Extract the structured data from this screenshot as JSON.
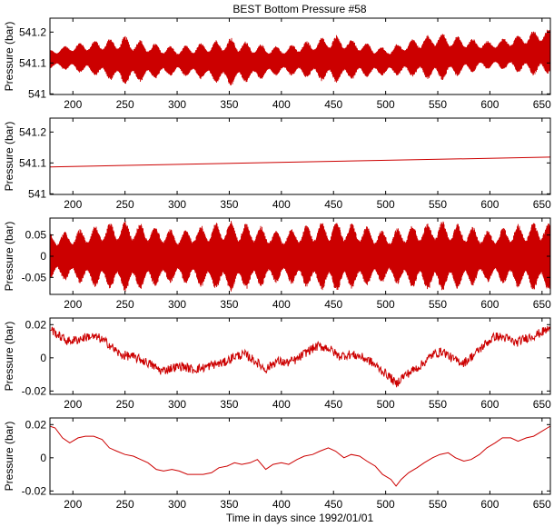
{
  "figure": {
    "title": "BEST Bottom Pressure #58",
    "xlabel": "Time in days since 1992/01/01"
  },
  "colors": {
    "series": "#cc0000",
    "axes": "#000000",
    "background": "#ffffff"
  },
  "chart_data": [
    {
      "type": "line",
      "title": "BEST Bottom Pressure #58",
      "ylabel": "Pressure (bar)",
      "xlim": [
        178,
        658
      ],
      "ylim": [
        540.998,
        541.245
      ],
      "xticks": [
        200,
        250,
        300,
        350,
        400,
        450,
        500,
        550,
        600,
        650
      ],
      "yticks": [
        541,
        541.1,
        541.2
      ],
      "ytick_labels": [
        "541",
        "541.1",
        "541.2"
      ],
      "style": "dense-oscillation",
      "series": [
        {
          "x": [
            178,
            200,
            225,
            250,
            275,
            300,
            325,
            350,
            375,
            400,
            425,
            450,
            475,
            500,
            525,
            550,
            575,
            600,
            625,
            650,
            658
          ],
          "y": [
            541.113,
            541.118,
            541.115,
            541.108,
            541.106,
            541.107,
            541.106,
            541.104,
            541.103,
            541.108,
            541.111,
            541.113,
            541.111,
            541.105,
            541.117,
            541.12,
            541.123,
            541.126,
            541.13,
            541.134,
            541.138
          ]
        }
      ],
      "amplitude": [
        0.03,
        0.045,
        0.06,
        0.08,
        0.06,
        0.045,
        0.06,
        0.08,
        0.06,
        0.045,
        0.06,
        0.08,
        0.06,
        0.045,
        0.06,
        0.08,
        0.06,
        0.045,
        0.06,
        0.08,
        0.07
      ]
    },
    {
      "type": "line",
      "ylabel": "Pressure (bar)",
      "xlim": [
        178,
        658
      ],
      "ylim": [
        540.998,
        541.245
      ],
      "xticks": [
        200,
        250,
        300,
        350,
        400,
        450,
        500,
        550,
        600,
        650
      ],
      "yticks": [
        541,
        541.1,
        541.2
      ],
      "ytick_labels": [
        "541",
        "541.1",
        "541.2"
      ],
      "style": "line",
      "series": [
        {
          "x": [
            178,
            658
          ],
          "y": [
            541.087,
            541.119
          ]
        }
      ]
    },
    {
      "type": "line",
      "ylabel": "Pressure (bar)",
      "xlim": [
        178,
        658
      ],
      "ylim": [
        -0.09,
        0.09
      ],
      "xticks": [
        200,
        250,
        300,
        350,
        400,
        450,
        500,
        550,
        600,
        650
      ],
      "yticks": [
        -0.05,
        0,
        0.05
      ],
      "ytick_labels": [
        "-0.05",
        "0",
        "0.05"
      ],
      "style": "dense-oscillation",
      "series": [
        {
          "x": [
            178,
            200,
            225,
            250,
            275,
            300,
            325,
            350,
            375,
            400,
            425,
            450,
            475,
            500,
            525,
            550,
            575,
            600,
            625,
            650,
            658
          ],
          "y": [
            0,
            0,
            0,
            0,
            0,
            0,
            0,
            0,
            0,
            0,
            0,
            0,
            0,
            0,
            0,
            0,
            0,
            0,
            0,
            0,
            0
          ]
        }
      ],
      "amplitude": [
        0.055,
        0.06,
        0.075,
        0.085,
        0.075,
        0.06,
        0.075,
        0.085,
        0.075,
        0.06,
        0.075,
        0.085,
        0.075,
        0.06,
        0.075,
        0.085,
        0.075,
        0.06,
        0.075,
        0.085,
        0.08
      ]
    },
    {
      "type": "line",
      "ylabel": "Pressure (bar)",
      "xlim": [
        178,
        658
      ],
      "ylim": [
        -0.022,
        0.024
      ],
      "xticks": [
        200,
        250,
        300,
        350,
        400,
        450,
        500,
        550,
        600,
        650
      ],
      "yticks": [
        -0.02,
        0,
        0.02
      ],
      "ytick_labels": [
        "-0.02",
        "0",
        "0.02"
      ],
      "style": "noisy-line",
      "series": [
        {
          "x": [
            178,
            185,
            195,
            205,
            215,
            225,
            235,
            245,
            255,
            265,
            275,
            285,
            295,
            305,
            315,
            325,
            335,
            345,
            355,
            365,
            375,
            385,
            395,
            405,
            415,
            425,
            435,
            445,
            455,
            465,
            475,
            485,
            495,
            505,
            510,
            515,
            525,
            535,
            545,
            555,
            565,
            575,
            585,
            595,
            605,
            615,
            625,
            635,
            645,
            655,
            658
          ],
          "y": [
            0.018,
            0.014,
            0.01,
            0.011,
            0.013,
            0.012,
            0.008,
            0.002,
            0.001,
            -0.001,
            -0.004,
            -0.008,
            -0.006,
            -0.005,
            -0.007,
            -0.006,
            -0.004,
            -0.003,
            0.001,
            0.002,
            -0.002,
            -0.007,
            -0.002,
            -0.003,
            -0.001,
            0.004,
            0.007,
            0.006,
            0.001,
            0.002,
            0.001,
            -0.002,
            -0.007,
            -0.012,
            -0.016,
            -0.012,
            -0.008,
            -0.004,
            0.002,
            0.004,
            -0.001,
            -0.003,
            0.002,
            0.008,
            0.013,
            0.012,
            0.009,
            0.012,
            0.014,
            0.017,
            0.018
          ]
        }
      ]
    },
    {
      "type": "line",
      "ylabel": "Pressure (bar)",
      "xlabel": "Time in days since 1992/01/01",
      "xlim": [
        178,
        658
      ],
      "ylim": [
        -0.022,
        0.024
      ],
      "xticks": [
        200,
        250,
        300,
        350,
        400,
        450,
        500,
        550,
        600,
        650
      ],
      "yticks": [
        -0.02,
        0,
        0.02
      ],
      "ytick_labels": [
        "-0.02",
        "0",
        "0.02"
      ],
      "style": "line",
      "series": [
        {
          "x": [
            178,
            183,
            190,
            197,
            205,
            212,
            220,
            228,
            235,
            242,
            250,
            258,
            265,
            272,
            280,
            287,
            295,
            302,
            310,
            318,
            325,
            333,
            340,
            348,
            355,
            362,
            370,
            377,
            385,
            392,
            400,
            407,
            415,
            422,
            430,
            437,
            445,
            452,
            460,
            467,
            475,
            482,
            490,
            497,
            505,
            510,
            515,
            522,
            530,
            537,
            545,
            552,
            560,
            567,
            575,
            582,
            590,
            597,
            605,
            612,
            620,
            627,
            635,
            642,
            650,
            655,
            658
          ],
          "y": [
            0.019,
            0.018,
            0.012,
            0.009,
            0.012,
            0.013,
            0.013,
            0.011,
            0.006,
            0.004,
            0.002,
            0.001,
            -0.001,
            -0.003,
            -0.007,
            -0.008,
            -0.007,
            -0.008,
            -0.01,
            -0.01,
            -0.01,
            -0.009,
            -0.006,
            -0.005,
            -0.003,
            -0.004,
            -0.003,
            -0.001,
            -0.007,
            -0.004,
            -0.003,
            -0.004,
            -0.001,
            0.001,
            0.002,
            0.004,
            0.006,
            0.004,
            0.0,
            0.002,
            0.001,
            -0.002,
            -0.005,
            -0.01,
            -0.013,
            -0.017,
            -0.013,
            -0.009,
            -0.006,
            -0.003,
            0.0,
            0.002,
            0.003,
            0.0,
            -0.002,
            -0.001,
            0.002,
            0.006,
            0.009,
            0.012,
            0.012,
            0.01,
            0.012,
            0.013,
            0.016,
            0.018,
            0.019
          ]
        }
      ]
    }
  ]
}
